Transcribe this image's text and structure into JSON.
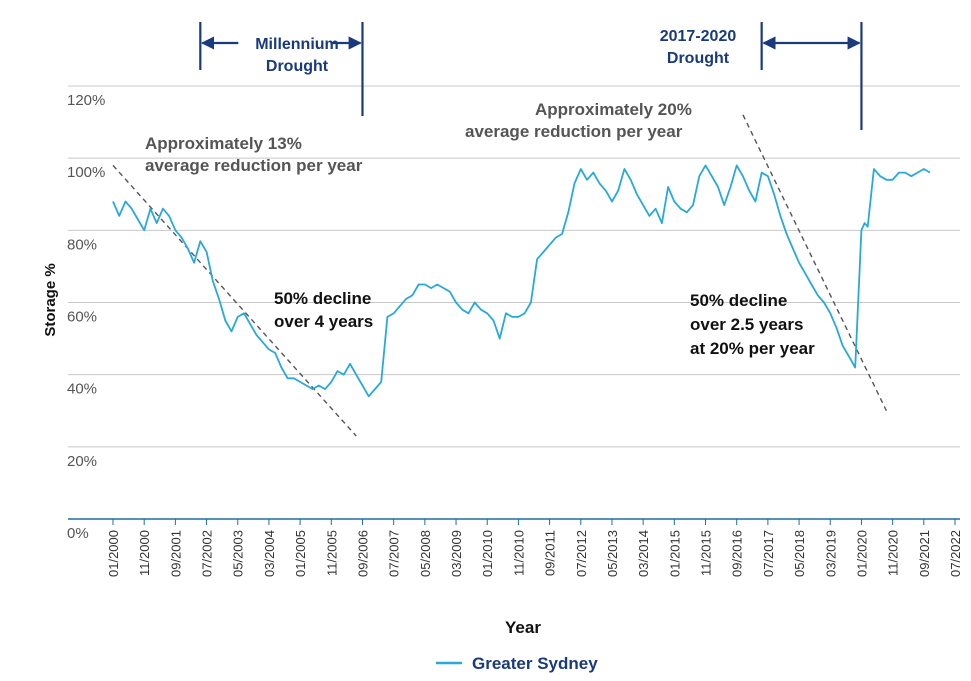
{
  "chart_data": {
    "type": "line",
    "title": "",
    "xlabel": "Year",
    "ylabel": "Storage %",
    "ylim": [
      0,
      120
    ],
    "y_ticks": [
      "0%",
      "20%",
      "40%",
      "60%",
      "80%",
      "100%",
      "120%"
    ],
    "x_ticks": [
      "01/2000",
      "11/2000",
      "09/2001",
      "07/2002",
      "05/2003",
      "03/2004",
      "01/2005",
      "11/2005",
      "09/2006",
      "07/2007",
      "05/2008",
      "03/2009",
      "01/2010",
      "11/2010",
      "09/2011",
      "07/2012",
      "05/2013",
      "03/2014",
      "01/2015",
      "11/2015",
      "09/2016",
      "07/2017",
      "05/2018",
      "03/2019",
      "01/2020",
      "11/2020",
      "09/2021",
      "07/2022"
    ],
    "grid": "horizontal",
    "legend_position": "bottom-center",
    "colors": {
      "series": "#29a9d9",
      "annotation": "#1a3a7c",
      "trend": "#555555",
      "grid": "#c8c8c8",
      "axis": "#1f6f9f"
    },
    "series": [
      {
        "name": "Greater Sydney",
        "x": [
          "2000-01",
          "2000-03",
          "2000-05",
          "2000-07",
          "2000-09",
          "2000-11",
          "2001-01",
          "2001-03",
          "2001-05",
          "2001-07",
          "2001-09",
          "2001-11",
          "2002-01",
          "2002-03",
          "2002-05",
          "2002-07",
          "2002-09",
          "2002-11",
          "2003-01",
          "2003-03",
          "2003-05",
          "2003-07",
          "2003-09",
          "2003-11",
          "2004-01",
          "2004-03",
          "2004-05",
          "2004-07",
          "2004-09",
          "2004-11",
          "2005-01",
          "2005-03",
          "2005-05",
          "2005-07",
          "2005-09",
          "2005-11",
          "2006-01",
          "2006-03",
          "2006-05",
          "2006-07",
          "2006-09",
          "2006-11",
          "2007-01",
          "2007-03",
          "2007-05",
          "2007-07",
          "2007-09",
          "2007-11",
          "2008-01",
          "2008-03",
          "2008-05",
          "2008-07",
          "2008-09",
          "2008-11",
          "2009-01",
          "2009-03",
          "2009-05",
          "2009-07",
          "2009-09",
          "2009-11",
          "2010-01",
          "2010-03",
          "2010-05",
          "2010-07",
          "2010-09",
          "2010-11",
          "2011-01",
          "2011-03",
          "2011-05",
          "2011-07",
          "2011-09",
          "2011-11",
          "2012-01",
          "2012-03",
          "2012-05",
          "2012-07",
          "2012-09",
          "2012-11",
          "2013-01",
          "2013-03",
          "2013-05",
          "2013-07",
          "2013-09",
          "2013-11",
          "2014-01",
          "2014-03",
          "2014-05",
          "2014-07",
          "2014-09",
          "2014-11",
          "2015-01",
          "2015-03",
          "2015-05",
          "2015-07",
          "2015-09",
          "2015-11",
          "2016-01",
          "2016-03",
          "2016-05",
          "2016-07",
          "2016-09",
          "2016-11",
          "2017-01",
          "2017-03",
          "2017-05",
          "2017-07",
          "2017-09",
          "2017-11",
          "2018-01",
          "2018-03",
          "2018-05",
          "2018-07",
          "2018-09",
          "2018-11",
          "2019-01",
          "2019-03",
          "2019-05",
          "2019-07",
          "2019-09",
          "2019-11",
          "2020-01",
          "2020-02",
          "2020-03",
          "2020-05",
          "2020-07",
          "2020-09",
          "2020-11",
          "2021-01",
          "2021-03",
          "2021-05",
          "2021-07",
          "2021-09",
          "2021-11"
        ],
        "values": [
          88,
          84,
          88,
          86,
          83,
          80,
          86,
          82,
          86,
          84,
          80,
          78,
          75,
          71,
          77,
          74,
          66,
          61,
          55,
          52,
          56,
          57,
          54,
          51,
          49,
          47,
          46,
          42,
          39,
          39,
          38,
          37,
          36,
          37,
          36,
          38,
          41,
          40,
          43,
          40,
          37,
          34,
          36,
          38,
          56,
          57,
          59,
          61,
          62,
          65,
          65,
          64,
          65,
          64,
          63,
          60,
          58,
          57,
          60,
          58,
          57,
          55,
          50,
          57,
          56,
          56,
          57,
          60,
          72,
          74,
          76,
          78,
          79,
          85,
          93,
          97,
          94,
          96,
          93,
          91,
          88,
          91,
          97,
          94,
          90,
          87,
          84,
          86,
          82,
          92,
          88,
          86,
          85,
          87,
          95,
          98,
          95,
          92,
          87,
          92,
          98,
          95,
          91,
          88,
          96,
          95,
          90,
          84,
          79,
          75,
          71,
          68,
          65,
          62,
          60,
          57,
          53,
          48,
          45,
          42,
          80,
          82,
          81,
          97,
          95,
          94,
          94,
          96,
          96,
          95,
          96,
          97,
          96
        ]
      }
    ],
    "trend_lines": [
      {
        "from": [
          "2000-01",
          98
        ],
        "to": [
          "2006-07",
          23
        ]
      },
      {
        "from": [
          "2016-11",
          112
        ],
        "to": [
          "2020-09",
          30
        ]
      }
    ],
    "annotations": {
      "drought1": {
        "label_line1": "Millennium",
        "label_line2": "Drought",
        "start": "2002-05",
        "end": "2006-09"
      },
      "drought2": {
        "label_line1": "2017-2020",
        "label_line2": "Drought",
        "start": "2017-05",
        "end": "2020-01"
      },
      "note1": {
        "line1": "Approximately 13%",
        "line2": "average reduction per year"
      },
      "note2": {
        "line1": "Approximately 20%",
        "line2": "average reduction per year"
      },
      "note3": {
        "line1": "50% decline",
        "line2": "over 4 years"
      },
      "note4": {
        "line1": "50% decline",
        "line2": "over 2.5 years",
        "line3": "at 20% per year"
      }
    }
  }
}
